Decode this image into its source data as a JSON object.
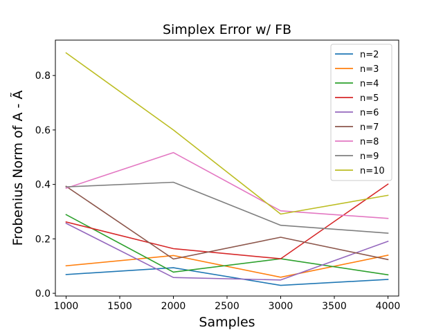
{
  "chart_data": {
    "type": "line",
    "title": "Simplex Error w/ FB",
    "xlabel": "Samples",
    "ylabel": "Frobenius Norm of A - Ã",
    "x": [
      1000,
      2000,
      3000,
      4000
    ],
    "xlim": [
      900,
      4100
    ],
    "ylim": [
      -0.01,
      0.93
    ],
    "xticks": [
      1000,
      1500,
      2000,
      2500,
      3000,
      3500,
      4000
    ],
    "xtick_labels": [
      "1000",
      "1500",
      "2000",
      "2500",
      "3000",
      "3500",
      "4000"
    ],
    "yticks": [
      0.0,
      0.2,
      0.4,
      0.6,
      0.8
    ],
    "ytick_labels": [
      "0.0",
      "0.2",
      "0.4",
      "0.6",
      "0.8"
    ],
    "grid": false,
    "legend_position": "top-right",
    "series": [
      {
        "name": "n=2",
        "color": "#1f77b4",
        "values": [
          0.069,
          0.094,
          0.029,
          0.051
        ]
      },
      {
        "name": "n=3",
        "color": "#ff7f0e",
        "values": [
          0.101,
          0.139,
          0.059,
          0.14
        ]
      },
      {
        "name": "n=4",
        "color": "#2ca02c",
        "values": [
          0.289,
          0.078,
          0.127,
          0.068
        ]
      },
      {
        "name": "n=5",
        "color": "#d62728",
        "values": [
          0.262,
          0.164,
          0.127,
          0.401
        ]
      },
      {
        "name": "n=6",
        "color": "#9467bd",
        "values": [
          0.257,
          0.058,
          0.049,
          0.191
        ]
      },
      {
        "name": "n=7",
        "color": "#8c564b",
        "values": [
          0.393,
          0.126,
          0.206,
          0.124
        ]
      },
      {
        "name": "n=8",
        "color": "#e377c2",
        "values": [
          0.386,
          0.517,
          0.303,
          0.275
        ]
      },
      {
        "name": "n=9",
        "color": "#7f7f7f",
        "values": [
          0.391,
          0.408,
          0.25,
          0.221
        ]
      },
      {
        "name": "n=10",
        "color": "#bcbd22",
        "values": [
          0.883,
          0.6,
          0.291,
          0.36
        ]
      }
    ]
  }
}
